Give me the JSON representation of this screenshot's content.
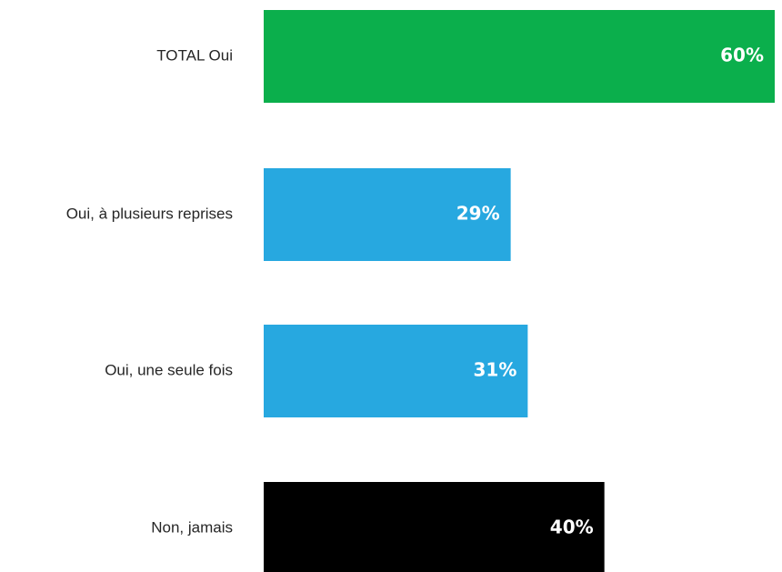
{
  "chart_data": {
    "type": "bar",
    "orientation": "horizontal",
    "categories": [
      "TOTAL Oui",
      "Oui, à plusieurs reprises",
      "Oui, une seule fois",
      "Non, jamais"
    ],
    "values": [
      60,
      29,
      31,
      40
    ],
    "value_labels": [
      "60%",
      "29%",
      "31%",
      "40%"
    ],
    "colors": [
      "#0baf4c",
      "#27a8e0",
      "#27a8e0",
      "#000000"
    ],
    "xlim": [
      0,
      60
    ],
    "grid": false,
    "title": "",
    "xlabel": "",
    "ylabel": ""
  }
}
